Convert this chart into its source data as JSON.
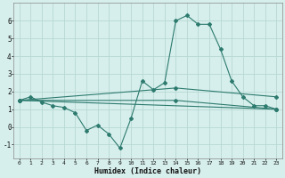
{
  "xlabel": "Humidex (Indice chaleur)",
  "ylabel": "",
  "bg_color": "#d6efec",
  "grid_color": "#b8d8d4",
  "line_color": "#2d7a6e",
  "xlim": [
    -0.5,
    23.5
  ],
  "ylim": [
    -1.8,
    7.0
  ],
  "yticks": [
    -1,
    0,
    1,
    2,
    3,
    4,
    5,
    6
  ],
  "xticks": [
    0,
    1,
    2,
    3,
    4,
    5,
    6,
    7,
    8,
    9,
    10,
    11,
    12,
    13,
    14,
    15,
    16,
    17,
    18,
    19,
    20,
    21,
    22,
    23
  ],
  "lines": [
    {
      "x": [
        0,
        1,
        2,
        3,
        4,
        5,
        6,
        7,
        8,
        9,
        10,
        11,
        12,
        13,
        14,
        15,
        16,
        17,
        18,
        19,
        20,
        21,
        22,
        23
      ],
      "y": [
        1.5,
        1.7,
        1.4,
        1.2,
        1.1,
        0.8,
        -0.2,
        0.1,
        -0.4,
        -1.2,
        0.5,
        2.6,
        2.1,
        2.5,
        6.0,
        6.3,
        5.8,
        5.8,
        4.4,
        2.6,
        1.7,
        1.2,
        1.2,
        1.0
      ]
    },
    {
      "x": [
        0,
        23
      ],
      "y": [
        1.5,
        1.0
      ]
    },
    {
      "x": [
        0,
        14,
        23
      ],
      "y": [
        1.5,
        2.2,
        1.7
      ]
    },
    {
      "x": [
        0,
        14,
        23
      ],
      "y": [
        1.5,
        1.5,
        1.0
      ]
    }
  ]
}
